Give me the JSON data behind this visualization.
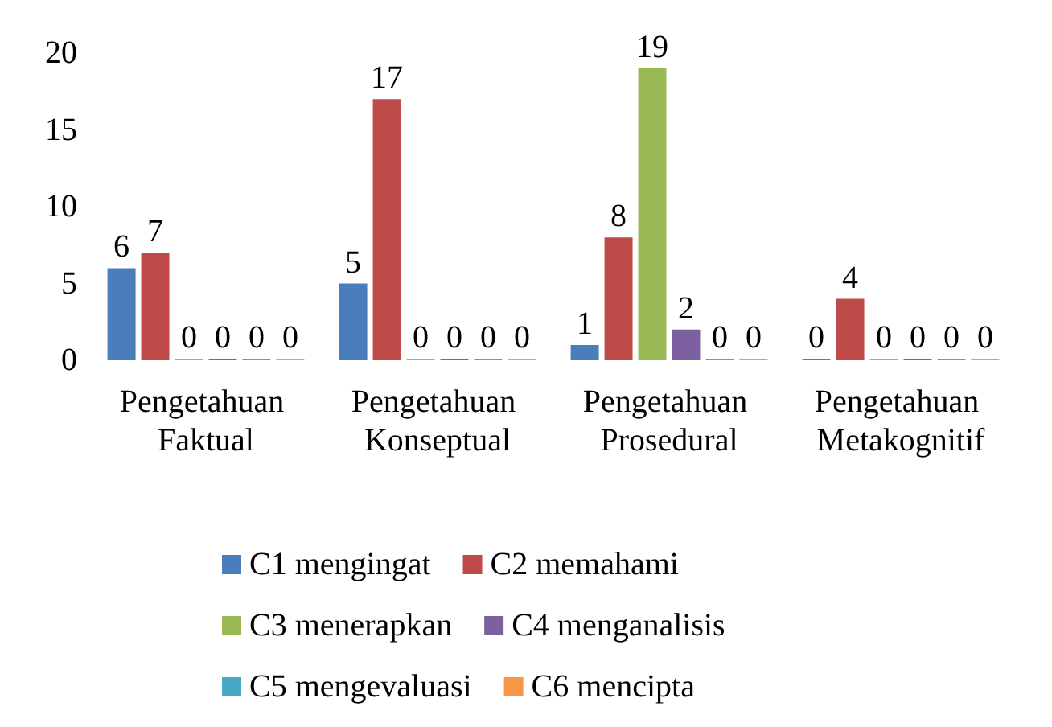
{
  "chart_data": {
    "type": "bar",
    "categories": [
      "Pengetahuan Faktual",
      "Pengetahuan Konseptual",
      "Pengetahuan Prosedural",
      "Pengetahuan Metakognitif"
    ],
    "series": [
      {
        "name": "C1 mengingat",
        "color": "#4a7ebb",
        "values": [
          6,
          5,
          1,
          0
        ]
      },
      {
        "name": "C2 memahami",
        "color": "#be4b48",
        "values": [
          7,
          17,
          8,
          4
        ]
      },
      {
        "name": "C3 menerapkan",
        "color": "#98b954",
        "values": [
          0,
          0,
          19,
          0
        ]
      },
      {
        "name": "C4 menganalisis",
        "color": "#7d60a0",
        "values": [
          0,
          0,
          2,
          0
        ]
      },
      {
        "name": "C5 mengevaluasi",
        "color": "#46aac5",
        "values": [
          0,
          0,
          0,
          0
        ]
      },
      {
        "name": "C6 mencipta",
        "color": "#f79646",
        "values": [
          0,
          0,
          0,
          0
        ]
      }
    ],
    "ylim": [
      0,
      20
    ],
    "yticks": [
      0,
      5,
      10,
      15,
      20
    ],
    "data_labels": true,
    "grid": false,
    "legend": "bottom"
  }
}
